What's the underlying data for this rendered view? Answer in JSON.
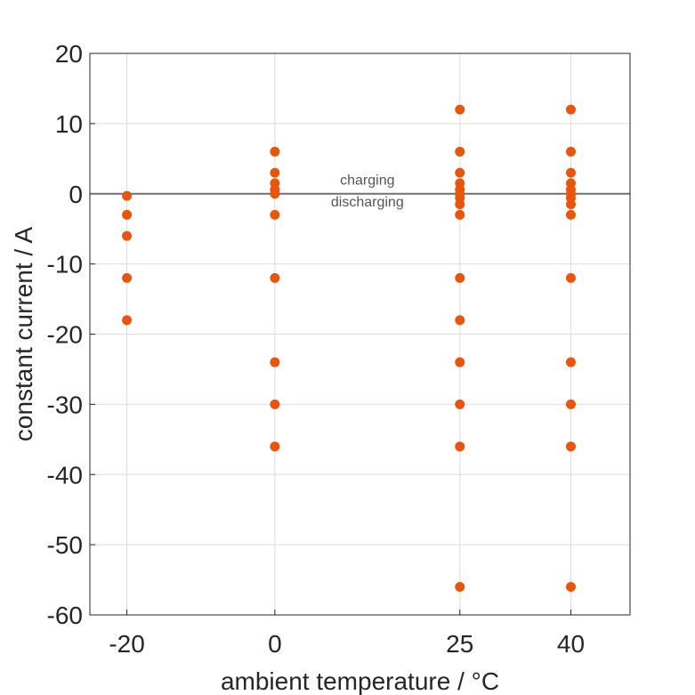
{
  "chart_data": {
    "type": "scatter",
    "xlabel": "ambient temperature / °C",
    "ylabel": "constant current / A",
    "xlim": [
      -25,
      48
    ],
    "ylim": [
      -60,
      20
    ],
    "xticks": [
      -20,
      0,
      25,
      40
    ],
    "xtick_labels": [
      "-20",
      "0",
      "25",
      "40"
    ],
    "yticks": [
      20,
      10,
      0,
      -10,
      -20,
      -30,
      -40,
      -50,
      -60
    ],
    "ytick_labels": [
      "20",
      "10",
      "0",
      "-10",
      "-20",
      "-30",
      "-40",
      "-50",
      "-60"
    ],
    "grid": true,
    "reference_line": {
      "y": 0,
      "color": "#707070"
    },
    "annotations": [
      {
        "text": "charging",
        "x": 12.5,
        "y": 1.3
      },
      {
        "text": "discharging",
        "x": 12.5,
        "y": -1.8
      }
    ],
    "marker_color": "#e8560e",
    "series": [
      {
        "points": [
          {
            "x": -20,
            "y": -0.3
          },
          {
            "x": -20,
            "y": -3
          },
          {
            "x": -20,
            "y": -6
          },
          {
            "x": -20,
            "y": -12
          },
          {
            "x": -20,
            "y": -18
          },
          {
            "x": 0,
            "y": 6
          },
          {
            "x": 0,
            "y": 3
          },
          {
            "x": 0,
            "y": 1.5
          },
          {
            "x": 0,
            "y": 0.6
          },
          {
            "x": 0,
            "y": 0
          },
          {
            "x": 0,
            "y": -3
          },
          {
            "x": 0,
            "y": -12
          },
          {
            "x": 0,
            "y": -24
          },
          {
            "x": 0,
            "y": -30
          },
          {
            "x": 0,
            "y": -36
          },
          {
            "x": 25,
            "y": 12
          },
          {
            "x": 25,
            "y": 6
          },
          {
            "x": 25,
            "y": 3
          },
          {
            "x": 25,
            "y": 1.5
          },
          {
            "x": 25,
            "y": 0.6
          },
          {
            "x": 25,
            "y": 0
          },
          {
            "x": 25,
            "y": -0.6
          },
          {
            "x": 25,
            "y": -1.5
          },
          {
            "x": 25,
            "y": -3
          },
          {
            "x": 25,
            "y": -12
          },
          {
            "x": 25,
            "y": -18
          },
          {
            "x": 25,
            "y": -24
          },
          {
            "x": 25,
            "y": -30
          },
          {
            "x": 25,
            "y": -36
          },
          {
            "x": 25,
            "y": -56
          },
          {
            "x": 40,
            "y": 12
          },
          {
            "x": 40,
            "y": 6
          },
          {
            "x": 40,
            "y": 3
          },
          {
            "x": 40,
            "y": 1.5
          },
          {
            "x": 40,
            "y": 0.6
          },
          {
            "x": 40,
            "y": 0
          },
          {
            "x": 40,
            "y": -0.6
          },
          {
            "x": 40,
            "y": -1.5
          },
          {
            "x": 40,
            "y": -3
          },
          {
            "x": 40,
            "y": -12
          },
          {
            "x": 40,
            "y": -24
          },
          {
            "x": 40,
            "y": -30
          },
          {
            "x": 40,
            "y": -36
          },
          {
            "x": 40,
            "y": -56
          }
        ]
      }
    ]
  }
}
